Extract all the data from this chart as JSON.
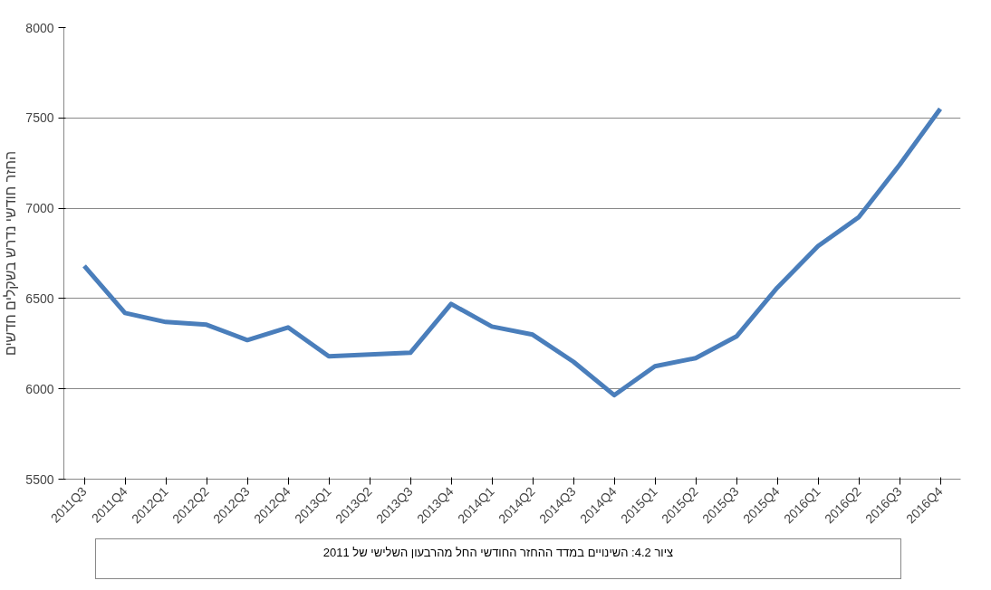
{
  "chart_data": {
    "type": "line",
    "ylabel": "החזר חודשי נדרש בשקלים חדשים",
    "categories": [
      "2011Q3",
      "2011Q4",
      "2012Q1",
      "2012Q2",
      "2012Q3",
      "2012Q4",
      "2013Q1",
      "2013Q2",
      "2013Q3",
      "2013Q4",
      "2014Q1",
      "2014Q2",
      "2014Q3",
      "2014Q4",
      "2015Q1",
      "2015Q2",
      "2015Q3",
      "2015Q4",
      "2016Q1",
      "2016Q2",
      "2016Q3",
      "2016Q4"
    ],
    "series": [
      {
        "color": "#4a7ebb",
        "values": [
          6680,
          6420,
          6370,
          6355,
          6270,
          6340,
          6180,
          6190,
          6200,
          6470,
          6345,
          6300,
          6150,
          5965,
          6125,
          6170,
          6290,
          6560,
          6790,
          6950,
          7240,
          7550
        ]
      }
    ],
    "ylim": [
      5500,
      8000
    ],
    "yticks": [
      5500,
      6000,
      6500,
      7000,
      7500,
      8000
    ],
    "grid": "y",
    "marker": "none",
    "line_style": "solid",
    "annotations": [
      "ציור 4.2: השינויים במדד ההחזר החודשי החל מהרבעון השלישי של 2011"
    ]
  }
}
